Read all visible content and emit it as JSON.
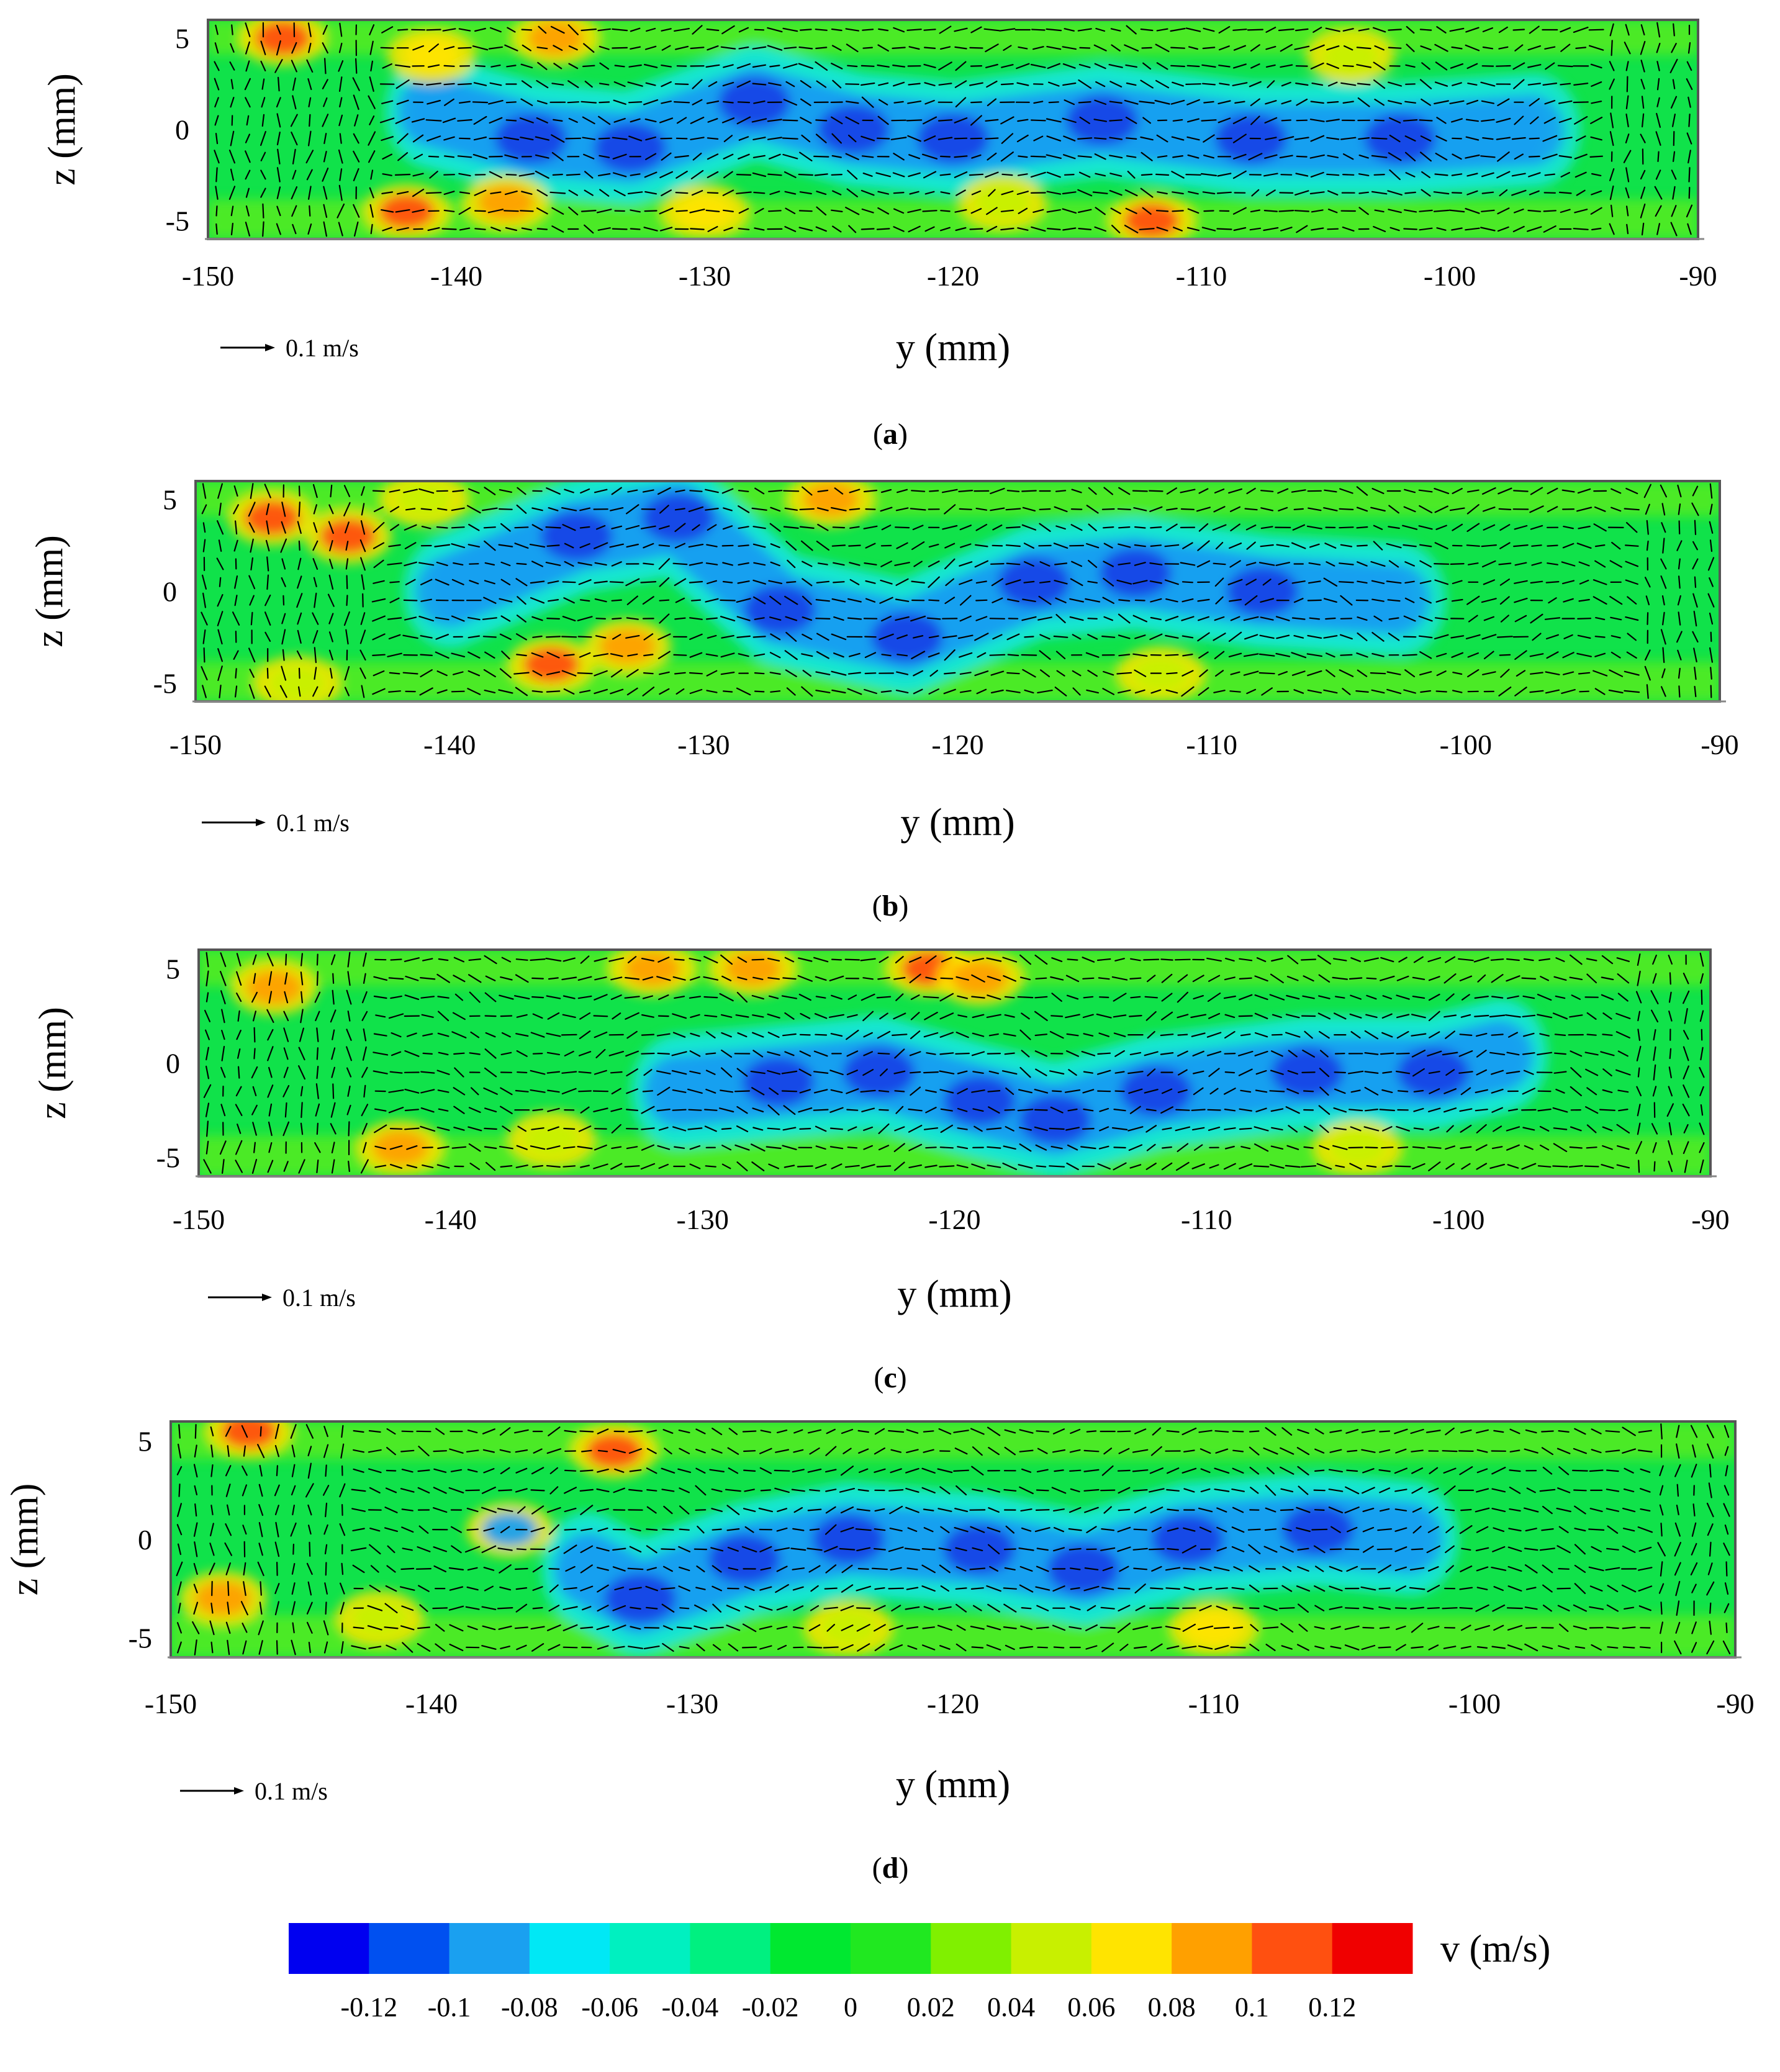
{
  "chart_data": {
    "type": "heatmap",
    "description_type": "vector-field-over-contour",
    "panels": [
      {
        "caption": "(a)",
        "caption_letter": "a",
        "xlabel": "y (mm)",
        "ylabel": "z (mm)",
        "xlim": [
          -150,
          -90
        ],
        "ylim": [
          -6,
          6
        ],
        "x_ticks": [
          "-150",
          "-140",
          "-130",
          "-120",
          "-110",
          "-100",
          "-90"
        ],
        "x_tick_values": [
          -150,
          -140,
          -130,
          -120,
          -110,
          -100,
          -90
        ],
        "y_ticks": [
          "5",
          "0",
          "-5"
        ],
        "y_tick_values": [
          5,
          0,
          -5
        ],
        "reference_vector": "0.1 m/s",
        "core_path": [
          [
            -141,
            1.0
          ],
          [
            -137,
            -0.5
          ],
          [
            -133,
            -1.0
          ],
          [
            -128,
            1.5
          ],
          [
            -124,
            0.0
          ],
          [
            -120,
            -0.5
          ],
          [
            -114,
            0.5
          ],
          [
            -108,
            -0.5
          ],
          [
            -102,
            -0.5
          ],
          [
            -96,
            0.0
          ]
        ],
        "blobs": [
          {
            "y": -147,
            "z": 5,
            "v": 0.11
          },
          {
            "y": -136,
            "z": 5,
            "v": 0.09
          },
          {
            "y": -142,
            "z": -4.5,
            "v": 0.1
          },
          {
            "y": -138,
            "z": -4,
            "v": 0.09
          },
          {
            "y": -130,
            "z": -4.5,
            "v": 0.07
          },
          {
            "y": -112,
            "z": -5,
            "v": 0.1
          },
          {
            "y": -141,
            "z": 4,
            "v": 0.06
          },
          {
            "y": -118,
            "z": -4,
            "v": 0.05
          },
          {
            "y": -104,
            "z": 4,
            "v": 0.04
          }
        ]
      },
      {
        "caption": "(b)",
        "caption_letter": "b",
        "xlabel": "y (mm)",
        "ylabel": "z (mm)",
        "xlim": [
          -150,
          -90
        ],
        "ylim": [
          -6,
          6
        ],
        "x_ticks": [
          "-150",
          "-140",
          "-130",
          "-120",
          "-110",
          "-100",
          "-90"
        ],
        "x_tick_values": [
          -150,
          -140,
          -130,
          -120,
          -110,
          -100,
          -90
        ],
        "y_ticks": [
          "5",
          "0",
          "-5"
        ],
        "y_tick_values": [
          5,
          0,
          -5
        ],
        "reference_vector": "0.1 m/s",
        "core_path": [
          [
            -140,
            0.0
          ],
          [
            -135,
            3.0
          ],
          [
            -131,
            4.0
          ],
          [
            -127,
            -1.0
          ],
          [
            -122,
            -2.5
          ],
          [
            -117,
            0.5
          ],
          [
            -113,
            1.0
          ],
          [
            -108,
            0.0
          ],
          [
            -102,
            -0.5
          ]
        ],
        "blobs": [
          {
            "y": -147,
            "z": 4,
            "v": 0.1
          },
          {
            "y": -144,
            "z": 3,
            "v": 0.1
          },
          {
            "y": -136,
            "z": -4,
            "v": 0.1
          },
          {
            "y": -133,
            "z": -3,
            "v": 0.09
          },
          {
            "y": -125,
            "z": 5,
            "v": 0.08
          },
          {
            "y": -141,
            "z": 5,
            "v": 0.05
          },
          {
            "y": -112,
            "z": -4.5,
            "v": 0.05
          },
          {
            "y": -146,
            "z": -5,
            "v": 0.05
          }
        ]
      },
      {
        "caption": "(c)",
        "caption_letter": "c",
        "xlabel": "y (mm)",
        "ylabel": "z (mm)",
        "xlim": [
          -150,
          -90
        ],
        "ylim": [
          -6,
          6
        ],
        "x_ticks": [
          "-150",
          "-140",
          "-130",
          "-120",
          "-110",
          "-100",
          "-90"
        ],
        "x_tick_values": [
          -150,
          -140,
          -130,
          -120,
          -110,
          -100,
          -90
        ],
        "y_ticks": [
          "5",
          "0",
          "-5"
        ],
        "y_tick_values": [
          5,
          0,
          -5
        ],
        "reference_vector": "0.1 m/s",
        "core_path": [
          [
            -131,
            -1.5
          ],
          [
            -127,
            -1.0
          ],
          [
            -123,
            -0.5
          ],
          [
            -119,
            -2.0
          ],
          [
            -116,
            -3.0
          ],
          [
            -112,
            -1.5
          ],
          [
            -106,
            -0.5
          ],
          [
            -101,
            -0.5
          ],
          [
            -98,
            0.5
          ]
        ],
        "blobs": [
          {
            "y": -147,
            "z": 4,
            "v": 0.09
          },
          {
            "y": -132,
            "z": 5,
            "v": 0.09
          },
          {
            "y": -128,
            "z": 5,
            "v": 0.08
          },
          {
            "y": -121,
            "z": 5,
            "v": 0.1
          },
          {
            "y": -119,
            "z": 4.5,
            "v": 0.08
          },
          {
            "y": -142,
            "z": -4.5,
            "v": 0.09
          },
          {
            "y": -136,
            "z": -4,
            "v": 0.05
          },
          {
            "y": -104,
            "z": -4.5,
            "v": 0.05
          }
        ]
      },
      {
        "caption": "(d)",
        "caption_letter": "d",
        "xlabel": "y (mm)",
        "ylabel": "z (mm)",
        "xlim": [
          -150,
          -90
        ],
        "ylim": [
          -6,
          6
        ],
        "x_ticks": [
          "-150",
          "-140",
          "-130",
          "-120",
          "-110",
          "-100",
          "-90"
        ],
        "x_tick_values": [
          -150,
          -140,
          -130,
          -120,
          -110,
          -100,
          -90
        ],
        "y_ticks": [
          "5",
          "0",
          "-5"
        ],
        "y_tick_values": [
          5,
          0,
          -5
        ],
        "reference_vector": "0.1 m/s",
        "core_path": [
          [
            -134,
            -1.5
          ],
          [
            -132,
            -3.0
          ],
          [
            -128,
            -1.0
          ],
          [
            -124,
            0.0
          ],
          [
            -119,
            -0.5
          ],
          [
            -115,
            -1.5
          ],
          [
            -111,
            0.0
          ],
          [
            -106,
            0.5
          ],
          [
            -102,
            0.0
          ]
        ],
        "blobs": [
          {
            "y": -148,
            "z": -3,
            "v": 0.09
          },
          {
            "y": -147,
            "z": 5.5,
            "v": 0.1
          },
          {
            "y": -133,
            "z": 4.5,
            "v": 0.11
          },
          {
            "y": -142,
            "z": -4,
            "v": 0.05
          },
          {
            "y": -124,
            "z": -4.5,
            "v": 0.05
          },
          {
            "y": -110,
            "z": -4.5,
            "v": 0.06
          },
          {
            "y": -137,
            "z": 0.5,
            "v": -0.09
          }
        ]
      }
    ],
    "colorbar": {
      "title": "v (m/s)",
      "ticks": [
        "-0.12",
        "-0.1",
        "-0.08",
        "-0.06",
        "-0.04",
        "-0.02",
        "0",
        "0.02",
        "0.04",
        "0.06",
        "0.08",
        "0.1",
        "0.12"
      ],
      "levels": [
        -0.13,
        -0.12,
        -0.1,
        -0.08,
        -0.06,
        -0.04,
        -0.02,
        0,
        0.02,
        0.04,
        0.06,
        0.08,
        0.1,
        0.12
      ],
      "colors": [
        "#0000f0",
        "#0050f0",
        "#1aa0f0",
        "#00e8f5",
        "#00f0c0",
        "#00f080",
        "#00e830",
        "#20e820",
        "#80f000",
        "#c8f000",
        "#ffe400",
        "#ffa000",
        "#ff5010",
        "#f00000"
      ]
    }
  }
}
